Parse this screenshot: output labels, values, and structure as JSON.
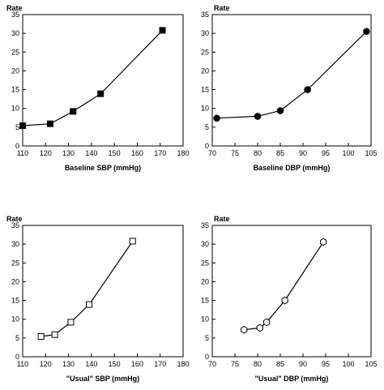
{
  "chart_data": [
    {
      "type": "line",
      "marker": "filled-square",
      "xlabel": "Baseline SBP (mmHg)",
      "ylabel": "Rate",
      "xlim": [
        110,
        180
      ],
      "ylim": [
        0,
        35
      ],
      "xticks": [
        110,
        120,
        130,
        140,
        150,
        160,
        170,
        180
      ],
      "yticks": [
        0,
        5,
        10,
        15,
        20,
        25,
        30,
        35
      ],
      "grid": false,
      "x": [
        110,
        122,
        132,
        144,
        171
      ],
      "y": [
        5.4,
        5.9,
        9.2,
        13.9,
        30.8
      ]
    },
    {
      "type": "line",
      "marker": "filled-circle",
      "xlabel": "Baseline DBP (mmHg)",
      "ylabel": "Rate",
      "xlim": [
        70,
        105
      ],
      "ylim": [
        0,
        35
      ],
      "xticks": [
        70,
        75,
        80,
        85,
        90,
        95,
        100,
        105
      ],
      "yticks": [
        0,
        5,
        10,
        15,
        20,
        25,
        30,
        35
      ],
      "grid": false,
      "x": [
        71,
        80,
        85,
        91,
        104
      ],
      "y": [
        7.4,
        7.9,
        9.4,
        15,
        30.5
      ]
    },
    {
      "type": "line",
      "marker": "open-square",
      "xlabel": "\"Usual\" SBP (mmHg)",
      "ylabel": "Rate",
      "xlim": [
        110,
        180
      ],
      "ylim": [
        0,
        35
      ],
      "xticks": [
        110,
        120,
        130,
        140,
        150,
        160,
        170,
        180
      ],
      "yticks": [
        0,
        5,
        10,
        15,
        20,
        25,
        30,
        35
      ],
      "grid": false,
      "x": [
        118,
        124,
        131,
        139,
        158
      ],
      "y": [
        5.4,
        5.9,
        9.2,
        13.9,
        30.8
      ]
    },
    {
      "type": "line",
      "marker": "open-circle",
      "xlabel": "\"Usual\" DBP (mmHg)",
      "ylabel": "Rate",
      "xlim": [
        70,
        105
      ],
      "ylim": [
        0,
        35
      ],
      "xticks": [
        70,
        75,
        80,
        85,
        90,
        95,
        100,
        105
      ],
      "yticks": [
        0,
        5,
        10,
        15,
        20,
        25,
        30,
        35
      ],
      "grid": false,
      "x": [
        77,
        80.5,
        82,
        86,
        94.5
      ],
      "y": [
        7.2,
        7.7,
        9.2,
        15,
        30.6
      ]
    }
  ]
}
